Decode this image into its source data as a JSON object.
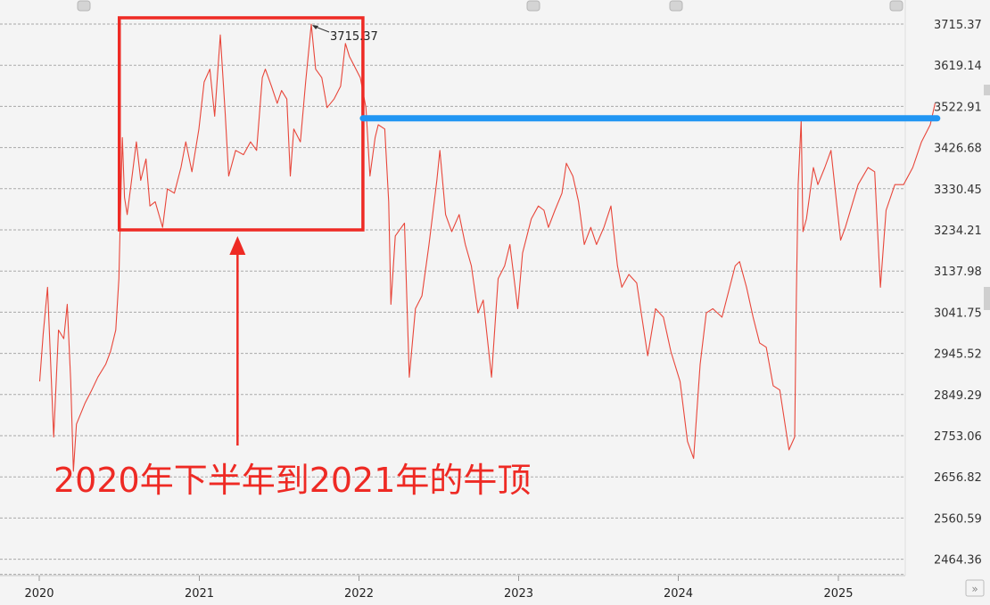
{
  "chart_data": {
    "type": "line",
    "title": "",
    "xlabel": "",
    "ylabel": "",
    "ylim": [
      2420,
      3740
    ],
    "grid": true,
    "x_ticks": [
      "2020",
      "2021",
      "2022",
      "2023",
      "2024",
      "2025"
    ],
    "y_ticks": [
      "3715.37",
      "3619.14",
      "3522.91",
      "3426.68",
      "3330.45",
      "3234.21",
      "3137.98",
      "3041.75",
      "2945.52",
      "2849.29",
      "2753.06",
      "2656.82",
      "2560.59",
      "2464.36"
    ],
    "series": [
      {
        "color": "#e8463a",
        "points": [
          [
            "2020-01-02",
            2880
          ],
          [
            "2020-01-10",
            2990
          ],
          [
            "2020-01-20",
            3100
          ],
          [
            "2020-02-03",
            2750
          ],
          [
            "2020-02-14",
            3000
          ],
          [
            "2020-02-26",
            2980
          ],
          [
            "2020-03-05",
            3060
          ],
          [
            "2020-03-13",
            2880
          ],
          [
            "2020-03-19",
            2670
          ],
          [
            "2020-03-26",
            2780
          ],
          [
            "2020-04-15",
            2830
          ],
          [
            "2020-04-30",
            2860
          ],
          [
            "2020-05-14",
            2890
          ],
          [
            "2020-06-01",
            2920
          ],
          [
            "2020-06-12",
            2950
          ],
          [
            "2020-06-24",
            3000
          ],
          [
            "2020-07-01",
            3120
          ],
          [
            "2020-07-06",
            3330
          ],
          [
            "2020-07-09",
            3450
          ],
          [
            "2020-07-14",
            3310
          ],
          [
            "2020-07-20",
            3270
          ],
          [
            "2020-07-30",
            3350
          ],
          [
            "2020-08-10",
            3440
          ],
          [
            "2020-08-20",
            3350
          ],
          [
            "2020-09-01",
            3400
          ],
          [
            "2020-09-10",
            3290
          ],
          [
            "2020-09-22",
            3300
          ],
          [
            "2020-10-09",
            3240
          ],
          [
            "2020-10-20",
            3330
          ],
          [
            "2020-11-05",
            3320
          ],
          [
            "2020-11-20",
            3380
          ],
          [
            "2020-12-01",
            3440
          ],
          [
            "2020-12-15",
            3370
          ],
          [
            "2020-12-31",
            3470
          ],
          [
            "2021-01-12",
            3580
          ],
          [
            "2021-01-25",
            3610
          ],
          [
            "2021-02-05",
            3500
          ],
          [
            "2021-02-18",
            3690
          ],
          [
            "2021-03-01",
            3510
          ],
          [
            "2021-03-09",
            3360
          ],
          [
            "2021-03-25",
            3420
          ],
          [
            "2021-04-12",
            3410
          ],
          [
            "2021-04-28",
            3440
          ],
          [
            "2021-05-12",
            3420
          ],
          [
            "2021-05-25",
            3590
          ],
          [
            "2021-06-01",
            3610
          ],
          [
            "2021-06-15",
            3570
          ],
          [
            "2021-06-28",
            3530
          ],
          [
            "2021-07-08",
            3560
          ],
          [
            "2021-07-20",
            3540
          ],
          [
            "2021-07-28",
            3360
          ],
          [
            "2021-08-05",
            3470
          ],
          [
            "2021-08-20",
            3440
          ],
          [
            "2021-09-01",
            3580
          ],
          [
            "2021-09-14",
            3715
          ],
          [
            "2021-09-24",
            3610
          ],
          [
            "2021-10-08",
            3590
          ],
          [
            "2021-10-20",
            3520
          ],
          [
            "2021-11-05",
            3540
          ],
          [
            "2021-11-20",
            3570
          ],
          [
            "2021-12-01",
            3670
          ],
          [
            "2021-12-10",
            3640
          ],
          [
            "2021-12-20",
            3620
          ],
          [
            "2022-01-04",
            3590
          ],
          [
            "2022-01-17",
            3520
          ],
          [
            "2022-01-26",
            3360
          ],
          [
            "2022-02-07",
            3450
          ],
          [
            "2022-02-14",
            3480
          ],
          [
            "2022-03-01",
            3470
          ],
          [
            "2022-03-10",
            3300
          ],
          [
            "2022-03-15",
            3060
          ],
          [
            "2022-03-25",
            3220
          ],
          [
            "2022-04-15",
            3250
          ],
          [
            "2022-04-26",
            2890
          ],
          [
            "2022-05-10",
            3050
          ],
          [
            "2022-05-25",
            3080
          ],
          [
            "2022-06-10",
            3200
          ],
          [
            "2022-06-28",
            3350
          ],
          [
            "2022-07-05",
            3420
          ],
          [
            "2022-07-18",
            3270
          ],
          [
            "2022-08-01",
            3230
          ],
          [
            "2022-08-18",
            3270
          ],
          [
            "2022-09-01",
            3200
          ],
          [
            "2022-09-15",
            3150
          ],
          [
            "2022-09-30",
            3040
          ],
          [
            "2022-10-12",
            3070
          ],
          [
            "2022-10-31",
            2890
          ],
          [
            "2022-11-15",
            3120
          ],
          [
            "2022-11-30",
            3150
          ],
          [
            "2022-12-12",
            3200
          ],
          [
            "2022-12-30",
            3050
          ],
          [
            "2023-01-10",
            3180
          ],
          [
            "2023-01-30",
            3260
          ],
          [
            "2023-02-15",
            3290
          ],
          [
            "2023-02-28",
            3280
          ],
          [
            "2023-03-10",
            3240
          ],
          [
            "2023-03-25",
            3280
          ],
          [
            "2023-04-10",
            3320
          ],
          [
            "2023-04-20",
            3390
          ],
          [
            "2023-05-05",
            3360
          ],
          [
            "2023-05-18",
            3300
          ],
          [
            "2023-05-31",
            3200
          ],
          [
            "2023-06-15",
            3240
          ],
          [
            "2023-06-28",
            3200
          ],
          [
            "2023-07-15",
            3240
          ],
          [
            "2023-07-31",
            3290
          ],
          [
            "2023-08-15",
            3150
          ],
          [
            "2023-08-25",
            3100
          ],
          [
            "2023-09-10",
            3130
          ],
          [
            "2023-09-28",
            3110
          ],
          [
            "2023-10-23",
            2940
          ],
          [
            "2023-11-10",
            3050
          ],
          [
            "2023-11-28",
            3030
          ],
          [
            "2023-12-15",
            2950
          ],
          [
            "2024-01-05",
            2880
          ],
          [
            "2024-01-22",
            2740
          ],
          [
            "2024-02-05",
            2700
          ],
          [
            "2024-02-20",
            2920
          ],
          [
            "2024-03-05",
            3040
          ],
          [
            "2024-03-20",
            3050
          ],
          [
            "2024-04-10",
            3030
          ],
          [
            "2024-04-25",
            3090
          ],
          [
            "2024-05-10",
            3150
          ],
          [
            "2024-05-20",
            3160
          ],
          [
            "2024-06-05",
            3100
          ],
          [
            "2024-06-20",
            3030
          ],
          [
            "2024-07-05",
            2970
          ],
          [
            "2024-07-20",
            2960
          ],
          [
            "2024-08-05",
            2870
          ],
          [
            "2024-08-20",
            2860
          ],
          [
            "2024-09-10",
            2720
          ],
          [
            "2024-09-23",
            2750
          ],
          [
            "2024-09-27",
            3080
          ],
          [
            "2024-10-01",
            3340
          ],
          [
            "2024-10-08",
            3490
          ],
          [
            "2024-10-12",
            3230
          ],
          [
            "2024-10-20",
            3260
          ],
          [
            "2024-11-05",
            3380
          ],
          [
            "2024-11-15",
            3340
          ],
          [
            "2024-12-01",
            3380
          ],
          [
            "2024-12-15",
            3420
          ],
          [
            "2025-01-06",
            3210
          ],
          [
            "2025-01-17",
            3240
          ],
          [
            "2025-02-15",
            3340
          ],
          [
            "2025-03-10",
            3380
          ],
          [
            "2025-03-25",
            3370
          ],
          [
            "2025-04-07",
            3100
          ],
          [
            "2025-04-20",
            3280
          ],
          [
            "2025-05-10",
            3340
          ],
          [
            "2025-05-30",
            3340
          ],
          [
            "2025-06-20",
            3380
          ],
          [
            "2025-07-10",
            3440
          ],
          [
            "2025-07-30",
            3480
          ],
          [
            "2025-08-10",
            3530
          ]
        ]
      }
    ],
    "peak_label": "3715.37",
    "peak_point": [
      "2021-09-14",
      3715.37
    ],
    "highlight_box": {
      "x_from": "2020-07-02",
      "x_to": "2022-01-10",
      "y_from": 3234.21,
      "y_to": 3730
    },
    "resistance_line": {
      "x_from": "2022-01-10",
      "x_to": "2025-08-15",
      "y": 3495,
      "color": "#2196f3"
    },
    "annotation": {
      "text": "2020年下半年到2021年的牛顶",
      "color": "#ee2a24"
    }
  }
}
